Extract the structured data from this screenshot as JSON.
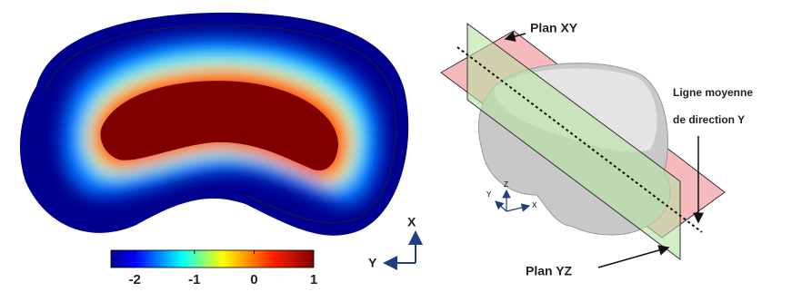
{
  "heatmap": {
    "colorbar": {
      "lim": [
        -2.4,
        1
      ],
      "ticks": [
        -2,
        -1,
        0,
        1
      ]
    },
    "axes": {
      "x": "X",
      "y": "Y"
    }
  },
  "model": {
    "axes": {
      "x": "X",
      "y": "Y",
      "z": "Z"
    },
    "labels": {
      "plane_xy": "Plan XY",
      "plane_yz": "Plan YZ",
      "midline": [
        "Ligne moyenne",
        "de direction Y"
      ]
    }
  }
}
